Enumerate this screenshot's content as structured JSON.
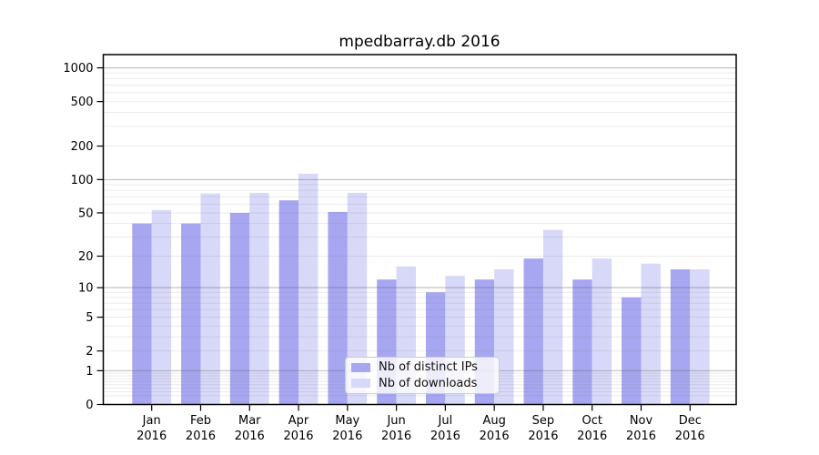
{
  "title": "mpedbarray.db 2016",
  "chart_data": {
    "type": "bar",
    "title": "mpedbarray.db 2016",
    "categories": [
      "Jan",
      "Feb",
      "Mar",
      "Apr",
      "May",
      "Jun",
      "Jul",
      "Aug",
      "Sep",
      "Oct",
      "Nov",
      "Dec"
    ],
    "year_label": "2016",
    "series": [
      {
        "name": "Nb of distinct IPs",
        "color": "#a6a6f1",
        "values": [
          40,
          40,
          50,
          65,
          51,
          12,
          9,
          12,
          19,
          12,
          8,
          15
        ]
      },
      {
        "name": "Nb of downloads",
        "color": "#d8d8f8",
        "values": [
          53,
          75,
          76,
          113,
          76,
          16,
          13,
          15,
          35,
          19,
          17,
          15
        ]
      }
    ],
    "yscale": "log1p",
    "y_ticks": [
      1000,
      500,
      200,
      100,
      50,
      20,
      10,
      5,
      2,
      1,
      0
    ],
    "ylim": [
      0,
      1100
    ],
    "grid": true,
    "legend_position": "lower center",
    "colors": {
      "major_grid": "rgba(95,95,95,0.42)",
      "minor_grid": "rgba(120,120,120,0.15)",
      "spine": "#000000",
      "text": "#000000"
    }
  }
}
